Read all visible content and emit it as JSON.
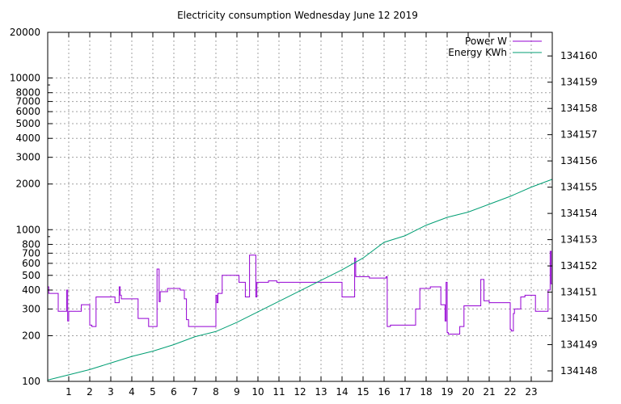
{
  "chart_data": {
    "type": "line",
    "title": "Electricity consumption Wednesday June 12 2019",
    "xlabel": "",
    "ylabel": "",
    "y2label": "",
    "xlim": [
      0,
      24
    ],
    "ylim": [
      100,
      20000
    ],
    "y_scale": "log",
    "y2lim": [
      134147.6,
      134160.9
    ],
    "x_ticks": [
      1,
      2,
      3,
      4,
      5,
      6,
      7,
      8,
      9,
      10,
      11,
      12,
      13,
      14,
      15,
      16,
      17,
      18,
      19,
      20,
      21,
      22,
      23
    ],
    "y_ticks": [
      100,
      200,
      300,
      400,
      500,
      600,
      700,
      800,
      1000,
      2000,
      3000,
      4000,
      5000,
      6000,
      7000,
      8000,
      10000,
      20000
    ],
    "y2_ticks": [
      134148,
      134149,
      134150,
      134151,
      134152,
      134153,
      134154,
      134155,
      134156,
      134157,
      134158,
      134159,
      134160
    ],
    "grid": true,
    "legend_position": "top-right",
    "series": [
      {
        "name": "Power W",
        "color": "#9400d3",
        "axis": "left",
        "x": [
          0,
          0.05,
          0.05,
          0.5,
          0.5,
          0.9,
          0.9,
          0.95,
          0.95,
          1.0,
          1.0,
          1.05,
          1.05,
          1.6,
          1.6,
          2.0,
          2.0,
          2.1,
          2.1,
          2.3,
          2.3,
          3.2,
          3.2,
          3.4,
          3.4,
          3.45,
          3.45,
          3.5,
          3.5,
          4.3,
          4.3,
          4.8,
          4.8,
          5.2,
          5.2,
          5.3,
          5.3,
          5.35,
          5.35,
          5.7,
          5.7,
          6.3,
          6.3,
          6.5,
          6.5,
          6.6,
          6.6,
          6.7,
          6.7,
          8.0,
          8.0,
          8.05,
          8.05,
          8.1,
          8.1,
          8.2,
          8.2,
          8.3,
          8.3,
          9.1,
          9.1,
          9.4,
          9.4,
          9.6,
          9.6,
          9.9,
          9.9,
          9.95,
          9.95,
          10.5,
          10.5,
          10.9,
          10.9,
          14.0,
          14.0,
          14.6,
          14.6,
          14.65,
          14.65,
          15.3,
          15.3,
          16.1,
          16.1,
          16.15,
          16.15,
          16.3,
          16.3,
          17.5,
          17.5,
          17.7,
          17.7,
          18.2,
          18.2,
          18.7,
          18.7,
          18.9,
          18.9,
          18.95,
          18.95,
          19.0,
          19.0,
          19.05,
          19.05,
          19.6,
          19.6,
          19.8,
          19.8,
          20.6,
          20.6,
          20.75,
          20.75,
          21.0,
          21.0,
          21.3,
          21.3,
          22.0,
          22.0,
          22.05,
          22.05,
          22.15,
          22.15,
          22.2,
          22.2,
          22.5,
          22.5,
          22.7,
          22.7,
          23.2,
          23.2,
          23.8,
          23.8,
          23.9,
          23.9,
          23.95,
          23.95,
          24.0
        ],
        "values": [
          420,
          420,
          380,
          380,
          290,
          290,
          400,
          400,
          250,
          250,
          290,
          290,
          290,
          290,
          320,
          320,
          235,
          235,
          230,
          230,
          360,
          360,
          330,
          330,
          420,
          420,
          370,
          370,
          350,
          350,
          260,
          260,
          230,
          230,
          550,
          550,
          335,
          335,
          390,
          390,
          410,
          410,
          400,
          400,
          350,
          350,
          255,
          255,
          230,
          230,
          370,
          370,
          330,
          330,
          380,
          380,
          380,
          380,
          500,
          500,
          450,
          450,
          360,
          360,
          680,
          680,
          360,
          360,
          450,
          450,
          460,
          460,
          450,
          450,
          360,
          360,
          650,
          650,
          490,
          490,
          480,
          480,
          490,
          490,
          230,
          230,
          235,
          235,
          300,
          300,
          410,
          410,
          420,
          420,
          320,
          320,
          250,
          250,
          450,
          450,
          210,
          210,
          205,
          205,
          230,
          230,
          315,
          315,
          470,
          470,
          340,
          340,
          330,
          330,
          330,
          330,
          220,
          220,
          215,
          215,
          280,
          280,
          300,
          300,
          360,
          360,
          370,
          370,
          290,
          290,
          400,
          400,
          720,
          720,
          440,
          440
        ]
      },
      {
        "name": "Energy KWh",
        "color": "#009e73",
        "axis": "right",
        "x": [
          0,
          1,
          2,
          3,
          4,
          5,
          6,
          7,
          8,
          9,
          10,
          11,
          12,
          13,
          14,
          15,
          16,
          17,
          18,
          19,
          20,
          21,
          22,
          23,
          24
        ],
        "values": [
          134147.65,
          134147.85,
          134148.05,
          134148.3,
          134148.55,
          134148.75,
          134149.0,
          134149.3,
          134149.5,
          134149.85,
          134150.25,
          134150.65,
          134151.05,
          134151.45,
          134151.85,
          134152.3,
          134152.9,
          134153.15,
          134153.55,
          134153.85,
          134154.05,
          134154.35,
          134154.65,
          134155.0,
          134155.3
        ]
      }
    ]
  }
}
